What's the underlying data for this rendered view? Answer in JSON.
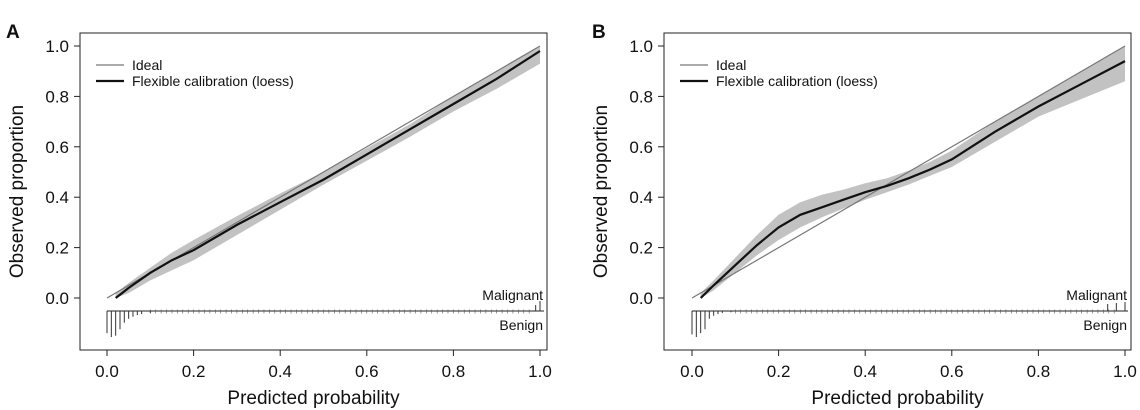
{
  "chart_data": [
    {
      "panel_letter": "A",
      "type": "line",
      "xlabel": "Predicted probability",
      "ylabel": "Observed proportion",
      "xlim": [
        0,
        1
      ],
      "ylim": [
        0,
        1
      ],
      "xticks": [
        "0.0",
        "0.2",
        "0.4",
        "0.6",
        "0.8",
        "1.0"
      ],
      "yticks": [
        "0.0",
        "0.2",
        "0.4",
        "0.6",
        "0.8",
        "1.0"
      ],
      "grid": false,
      "legend": {
        "placement": "top-left",
        "entries": [
          "Ideal",
          "Flexible calibration (loess)"
        ]
      },
      "series": [
        {
          "name": "Ideal",
          "color": "#777777",
          "x": [
            0,
            1
          ],
          "y": [
            0,
            1
          ]
        },
        {
          "name": "Flexible calibration (loess)",
          "color": "#111111",
          "band_color": "#c2c2c2",
          "x": [
            0.02,
            0.05,
            0.1,
            0.15,
            0.2,
            0.3,
            0.4,
            0.5,
            0.6,
            0.7,
            0.8,
            0.9,
            1.0
          ],
          "y": [
            0.0,
            0.04,
            0.1,
            0.15,
            0.19,
            0.29,
            0.38,
            0.47,
            0.57,
            0.67,
            0.77,
            0.87,
            0.98
          ],
          "lower": [
            0.0,
            0.02,
            0.07,
            0.11,
            0.15,
            0.25,
            0.35,
            0.45,
            0.545,
            0.64,
            0.74,
            0.83,
            0.93
          ],
          "upper": [
            0.02,
            0.06,
            0.12,
            0.18,
            0.23,
            0.325,
            0.415,
            0.5,
            0.595,
            0.69,
            0.8,
            0.9,
            1.0
          ]
        }
      ],
      "rug": {
        "malignant_label": "Malignant",
        "benign_label": "Benign",
        "malignant_x": [
          1.0,
          0.99
        ],
        "malignant_h": [
          0.5,
          0.3
        ],
        "benign_x": [
          0.0,
          0.01,
          0.02,
          0.03,
          0.04,
          0.05,
          0.06,
          0.07,
          0.08,
          0.1
        ],
        "benign_h": [
          0.85,
          1.0,
          0.95,
          0.7,
          0.45,
          0.3,
          0.22,
          0.16,
          0.12,
          0.08
        ]
      }
    },
    {
      "panel_letter": "B",
      "type": "line",
      "xlabel": "Predicted probability",
      "ylabel": "Observed proportion",
      "xlim": [
        0,
        1
      ],
      "ylim": [
        0,
        1
      ],
      "xticks": [
        "0.0",
        "0.2",
        "0.4",
        "0.6",
        "0.8",
        "1.0"
      ],
      "yticks": [
        "0.0",
        "0.2",
        "0.4",
        "0.6",
        "0.8",
        "1.0"
      ],
      "grid": false,
      "legend": {
        "placement": "top-left",
        "entries": [
          "Ideal",
          "Flexible calibration (loess)"
        ]
      },
      "series": [
        {
          "name": "Ideal",
          "color": "#777777",
          "x": [
            0,
            1
          ],
          "y": [
            0,
            1
          ]
        },
        {
          "name": "Flexible calibration (loess)",
          "color": "#111111",
          "band_color": "#c2c2c2",
          "x": [
            0.02,
            0.05,
            0.1,
            0.15,
            0.2,
            0.25,
            0.3,
            0.35,
            0.4,
            0.45,
            0.5,
            0.55,
            0.6,
            0.7,
            0.8,
            0.9,
            1.0
          ],
          "y": [
            0.0,
            0.05,
            0.13,
            0.21,
            0.28,
            0.33,
            0.36,
            0.39,
            0.42,
            0.445,
            0.475,
            0.51,
            0.55,
            0.66,
            0.76,
            0.85,
            0.94
          ],
          "lower": [
            0.0,
            0.03,
            0.1,
            0.17,
            0.23,
            0.28,
            0.32,
            0.355,
            0.39,
            0.42,
            0.45,
            0.485,
            0.52,
            0.62,
            0.72,
            0.79,
            0.86
          ],
          "upper": [
            0.02,
            0.07,
            0.16,
            0.25,
            0.33,
            0.38,
            0.41,
            0.43,
            0.455,
            0.475,
            0.505,
            0.54,
            0.585,
            0.7,
            0.8,
            0.9,
            1.0
          ]
        }
      ],
      "rug": {
        "malignant_label": "Malignant",
        "benign_label": "Benign",
        "malignant_x": [
          0.96,
          0.98,
          1.0
        ],
        "malignant_h": [
          0.35,
          0.4,
          0.45
        ],
        "benign_x": [
          0.0,
          0.01,
          0.02,
          0.03,
          0.04,
          0.05,
          0.06,
          0.07,
          0.09
        ],
        "benign_h": [
          0.9,
          1.0,
          0.85,
          0.7,
          0.3,
          0.18,
          0.12,
          0.08,
          0.05
        ]
      }
    }
  ]
}
